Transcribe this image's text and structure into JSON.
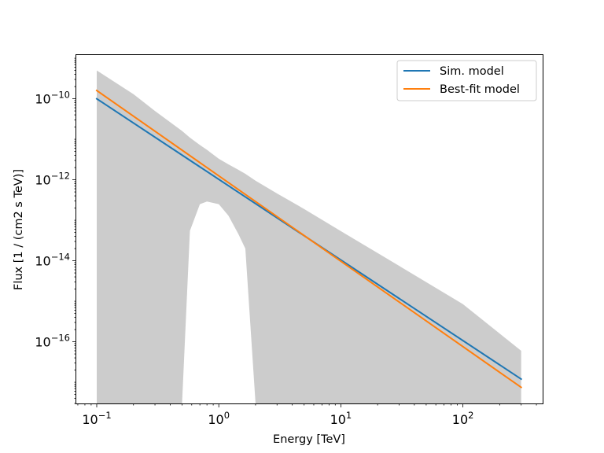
{
  "chart_data": {
    "type": "line",
    "xlabel": "Energy [TeV]",
    "ylabel": "Flux [1 / (cm2 s TeV)]",
    "xscale": "log",
    "yscale": "log",
    "xlim": [
      0.068,
      450
    ],
    "ylim": [
      3e-18,
      1.2e-09
    ],
    "grid": false,
    "legend_position": "top-right",
    "x_ticks": [
      {
        "base": "10",
        "exp": "−1",
        "value": 0.1
      },
      {
        "base": "10",
        "exp": "0",
        "value": 1
      },
      {
        "base": "10",
        "exp": "1",
        "value": 10
      },
      {
        "base": "10",
        "exp": "2",
        "value": 100
      }
    ],
    "y_ticks": [
      {
        "base": "10",
        "exp": "−10",
        "value": 1e-10
      },
      {
        "base": "10",
        "exp": "−12",
        "value": 1e-12
      },
      {
        "base": "10",
        "exp": "−14",
        "value": 1e-14
      },
      {
        "base": "10",
        "exp": "−16",
        "value": 1e-16
      }
    ],
    "series": [
      {
        "name": "Sim. model",
        "color": "#1f77b4",
        "x": [
          0.1,
          300
        ],
        "y": [
          1e-10,
          1.2e-17
        ]
      },
      {
        "name": "Best-fit model",
        "color": "#ff7f0e",
        "x": [
          0.1,
          300
        ],
        "y": [
          1.6e-10,
          7.5e-18
        ]
      }
    ],
    "error_band": {
      "color": "#cccccc",
      "x": [
        0.1,
        0.2,
        0.3,
        0.5,
        0.58,
        0.7,
        0.8,
        1.0,
        1.2,
        1.45,
        1.65,
        2.0,
        3,
        5,
        10,
        30,
        100,
        300
      ],
      "upper": [
        5e-10,
        1.3e-10,
        5e-11,
        1.6e-11,
        1.1e-11,
        7.2e-12,
        5.5e-12,
        3.3e-12,
        2.4e-12,
        1.75e-12,
        1.4e-12,
        9.5e-13,
        4.6e-13,
        1.9e-13,
        5.4e-14,
        7.5e-15,
        8.5e-16,
        6e-17
      ],
      "lower": [
        3e-18,
        3e-18,
        3e-18,
        3e-18,
        5.5e-14,
        2.5e-13,
        2.9e-13,
        2.5e-13,
        1.3e-13,
        4.5e-14,
        2e-14,
        3e-18,
        3e-18,
        3e-18,
        3e-18,
        3e-18,
        3e-18,
        3e-18
      ]
    }
  }
}
